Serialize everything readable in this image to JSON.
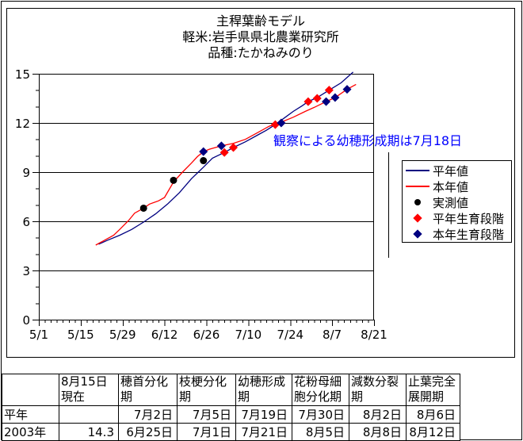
{
  "title": {
    "line1": "主稈葉齢モデル",
    "line2": "軽米:岩手県県北農業研究所",
    "line3": "品種:たかねみのり"
  },
  "annotation": "観察による幼穂形成期は7月18日",
  "colors": {
    "normal_year": "#000080",
    "this_year": "#ff0000",
    "observed": "#000000",
    "annotation_text": "#0000ff",
    "axis": "#000000",
    "background": "#ffffff"
  },
  "legend": {
    "items": [
      {
        "id": "normal-year",
        "label": "平年値",
        "swatch": "line",
        "color": "#000080"
      },
      {
        "id": "this-year",
        "label": "本年値",
        "swatch": "line",
        "color": "#ff0000"
      },
      {
        "id": "observed",
        "label": "実測値",
        "swatch": "circle",
        "color": "#000000"
      },
      {
        "id": "normal-year-stage",
        "label": "平年生育段階",
        "swatch": "diamond",
        "color": "#ff0000"
      },
      {
        "id": "this-year-stage",
        "label": "本年生育段階",
        "swatch": "diamond",
        "color": "#000080"
      }
    ]
  },
  "chart_data": {
    "type": "line",
    "title": "主稈葉齢モデル",
    "xlabel": "",
    "ylabel": "",
    "x_ticks": [
      "5/1",
      "5/15",
      "5/29",
      "6/12",
      "6/26",
      "7/10",
      "7/24",
      "8/7",
      "8/21"
    ],
    "y_ticks": [
      0,
      3,
      6,
      9,
      12,
      15
    ],
    "ylim": [
      0,
      15
    ],
    "grid": "horizontal",
    "legend_position": "right",
    "series": [
      {
        "id": "normal-year",
        "name": "平年値",
        "type": "line",
        "color": "#000080",
        "points": [
          [
            "5/21",
            4.6
          ],
          [
            "5/24",
            4.85
          ],
          [
            "5/28",
            5.15
          ],
          [
            "6/1",
            5.5
          ],
          [
            "6/5",
            5.95
          ],
          [
            "6/9",
            6.45
          ],
          [
            "6/13",
            7.05
          ],
          [
            "6/17",
            7.75
          ],
          [
            "6/21",
            8.6
          ],
          [
            "6/25",
            9.3
          ],
          [
            "6/28",
            9.85
          ],
          [
            "7/2",
            10.2
          ],
          [
            "7/5",
            10.5
          ],
          [
            "7/9",
            10.85
          ],
          [
            "7/13",
            11.25
          ],
          [
            "7/16",
            11.55
          ],
          [
            "7/19",
            11.9
          ],
          [
            "7/22",
            12.3
          ],
          [
            "7/25",
            12.7
          ],
          [
            "7/28",
            13.05
          ],
          [
            "7/30",
            13.3
          ],
          [
            "8/2",
            13.55
          ],
          [
            "8/6",
            14.0
          ],
          [
            "8/10",
            14.45
          ],
          [
            "8/14",
            15.1
          ]
        ]
      },
      {
        "id": "this-year",
        "name": "本年値",
        "type": "line",
        "color": "#ff0000",
        "points": [
          [
            "5/20",
            4.55
          ],
          [
            "5/23",
            4.85
          ],
          [
            "5/26",
            5.15
          ],
          [
            "5/28",
            5.5
          ],
          [
            "5/31",
            6.05
          ],
          [
            "6/2",
            6.5
          ],
          [
            "6/5",
            6.8
          ],
          [
            "6/7",
            7.05
          ],
          [
            "6/10",
            7.25
          ],
          [
            "6/12",
            7.45
          ],
          [
            "6/15",
            8.4
          ],
          [
            "6/18",
            9.0
          ],
          [
            "6/21",
            9.55
          ],
          [
            "6/23",
            9.95
          ],
          [
            "6/25",
            10.25
          ],
          [
            "6/27",
            10.4
          ],
          [
            "6/29",
            10.5
          ],
          [
            "7/1",
            10.6
          ],
          [
            "7/5",
            10.75
          ],
          [
            "7/9",
            11.0
          ],
          [
            "7/13",
            11.4
          ],
          [
            "7/17",
            11.8
          ],
          [
            "7/21",
            12.05
          ],
          [
            "7/25",
            12.35
          ],
          [
            "7/29",
            12.7
          ],
          [
            "8/1",
            12.95
          ],
          [
            "8/5",
            13.3
          ],
          [
            "8/8",
            13.55
          ],
          [
            "8/12",
            14.05
          ],
          [
            "8/15",
            14.35
          ]
        ]
      },
      {
        "id": "observed",
        "name": "実測値",
        "type": "scatter",
        "marker": "circle",
        "color": "#000000",
        "points": [
          [
            "6/5",
            6.8
          ],
          [
            "6/15",
            8.5
          ],
          [
            "6/25",
            9.7
          ]
        ]
      },
      {
        "id": "normal-year-stage",
        "name": "平年生育段階",
        "type": "scatter",
        "marker": "diamond",
        "color": "#ff0000",
        "points": [
          [
            "7/2",
            10.2
          ],
          [
            "7/5",
            10.5
          ],
          [
            "7/19",
            11.9
          ],
          [
            "7/30",
            13.3
          ],
          [
            "8/2",
            13.5
          ],
          [
            "8/6",
            14.0
          ]
        ]
      },
      {
        "id": "this-year-stage",
        "name": "本年生育段階",
        "type": "scatter",
        "marker": "diamond",
        "color": "#000080",
        "points": [
          [
            "6/25",
            10.25
          ],
          [
            "7/1",
            10.6
          ],
          [
            "7/21",
            12.0
          ],
          [
            "8/5",
            13.3
          ],
          [
            "8/8",
            13.55
          ],
          [
            "8/12",
            14.05
          ]
        ]
      }
    ]
  },
  "table": {
    "headers": [
      "",
      "8月15日\n現在",
      "穂首分化\n期",
      "枝梗分化\n期",
      "幼穂形成\n期",
      "花粉母細\n胞分化期",
      "減数分裂\n期",
      "止葉完全\n展開期"
    ],
    "rows": [
      {
        "label": "平年",
        "cells": [
          "",
          "7月2日",
          "7月5日",
          "7月19日",
          "7月30日",
          "8月2日",
          "8月6日"
        ]
      },
      {
        "label": "2003年",
        "cells": [
          "14.3",
          "6月25日",
          "7月1日",
          "7月21日",
          "8月5日",
          "8月8日",
          "8月12日"
        ]
      }
    ]
  }
}
